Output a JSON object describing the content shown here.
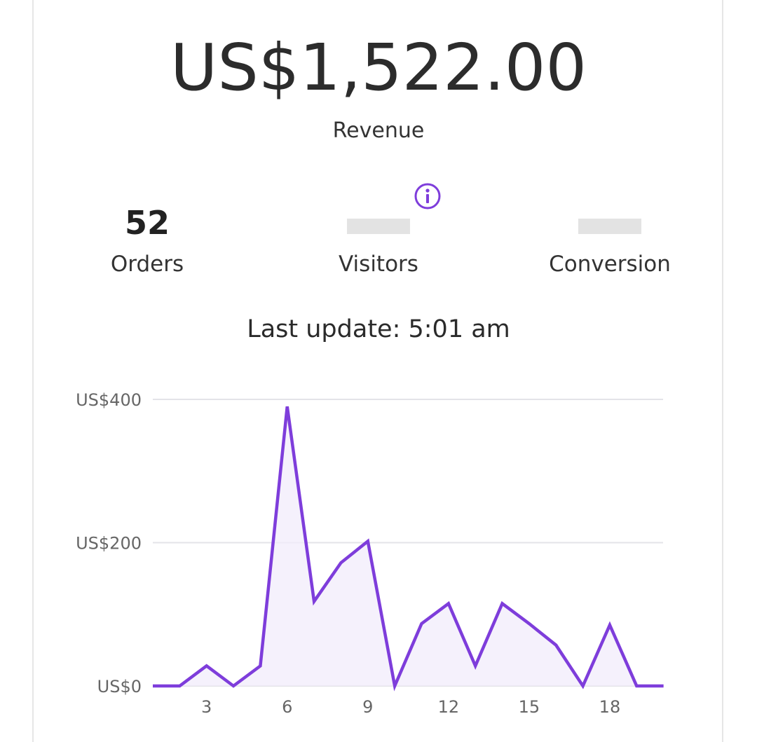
{
  "summary": {
    "revenue_value": "US$1,522.00",
    "revenue_label": "Revenue"
  },
  "metrics": {
    "orders": {
      "value": "52",
      "label": "Orders"
    },
    "visitors": {
      "value": "",
      "label": "Visitors"
    },
    "conversion": {
      "value": "",
      "label": "Conversion"
    }
  },
  "last_update": "Last update: 5:01 am",
  "colors": {
    "accent": "#7e3ddb",
    "fill": "#f1ecfb",
    "grid": "#e3e3e8",
    "placeholder": "#e3e3e3"
  },
  "icons": {
    "visitors_info": "info-icon"
  },
  "chart_data": {
    "type": "area",
    "x": [
      1,
      2,
      3,
      4,
      5,
      6,
      7,
      8,
      9,
      10,
      11,
      12,
      13,
      14,
      15,
      16,
      17,
      18,
      19,
      20
    ],
    "y": [
      0,
      0,
      28,
      0,
      28,
      390,
      118,
      172,
      202,
      0,
      87,
      115,
      28,
      115,
      87,
      57,
      0,
      85,
      0,
      0
    ],
    "xticks": [
      "3",
      "6",
      "9",
      "12",
      "15",
      "18"
    ],
    "xtick_values": [
      3,
      6,
      9,
      12,
      15,
      18
    ],
    "yticks": [
      "US$0",
      "US$200",
      "US$400"
    ],
    "ytick_values": [
      0,
      200,
      400
    ],
    "ylim": [
      0,
      400
    ],
    "grid": true,
    "legend": "none"
  }
}
